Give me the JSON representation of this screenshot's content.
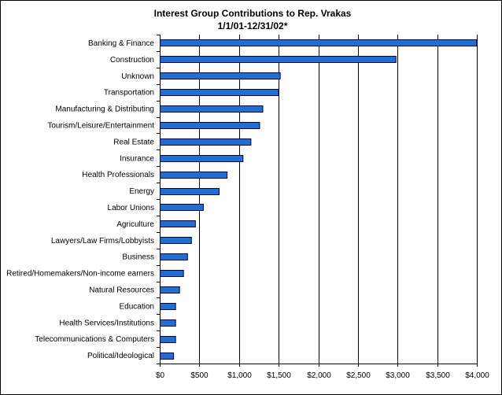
{
  "chart_data": {
    "type": "bar",
    "orientation": "horizontal",
    "title": "Interest Group Contributions to Rep. Vrakas",
    "subtitle": "1/1/01-12/31/02*",
    "xlabel": "",
    "ylabel": "",
    "categories": [
      "Banking & Finance",
      "Construction",
      "Unknown",
      "Transportation",
      "Manufacturing & Distributing",
      "Tourism/Leisure/Entertainment",
      "Real Estate",
      "Insurance",
      "Health Professionals",
      "Energy",
      "Labor Unions",
      "Agriculture",
      "Lawyers/Law Firms/Lobbyists",
      "Business",
      "Retired/Homemakers/Non-income earners",
      "Natural Resources",
      "Education",
      "Health Services/Institutions",
      "Telecommunications & Computers",
      "Political/Ideological"
    ],
    "values": [
      4000,
      2980,
      1520,
      1500,
      1300,
      1260,
      1150,
      1050,
      850,
      750,
      550,
      450,
      400,
      350,
      300,
      250,
      200,
      200,
      200,
      175
    ],
    "xlim": [
      0,
      4000
    ],
    "xticks": [
      0,
      500,
      1000,
      1500,
      2000,
      2500,
      3000,
      3500,
      4000
    ],
    "xtick_labels": [
      "$0",
      "$500",
      "$1,000",
      "$1,500",
      "$2,000",
      "$2,500",
      "$3,000",
      "$3,500",
      "$4,000"
    ],
    "grid": "vertical gridlines at each tick",
    "legend": "none",
    "bar_color": "#1f6fd1",
    "bar_outline_color": "#000040"
  }
}
